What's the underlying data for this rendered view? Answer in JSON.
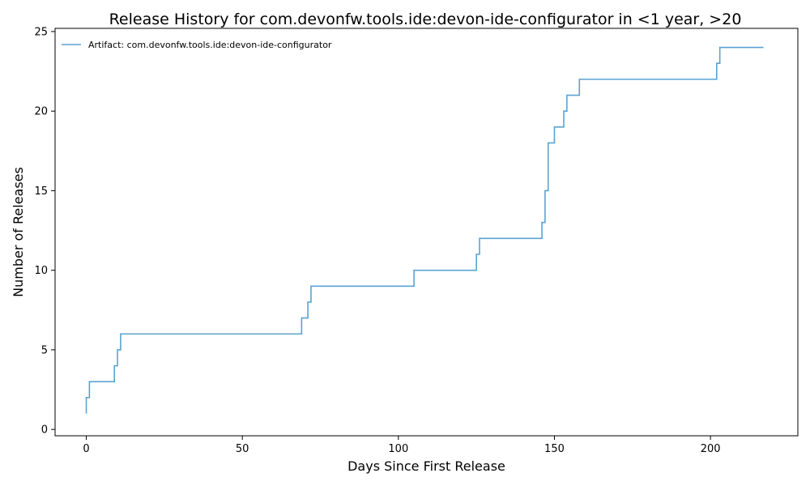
{
  "chart_data": {
    "type": "line",
    "step": true,
    "title": "Release History for com.devonfw.tools.ide:devon-ide-configurator in <1 year, >20",
    "xlabel": "Days Since First Release",
    "ylabel": "Number of Releases",
    "xlim": [
      -10,
      228
    ],
    "ylim": [
      -0.4,
      25.2
    ],
    "x_ticks": [
      0,
      50,
      100,
      150,
      200
    ],
    "y_ticks": [
      0,
      5,
      10,
      15,
      20,
      25
    ],
    "grid": false,
    "legend_position": "top-left",
    "series": [
      {
        "name": "Artifact: com.devonfw.tools.ide:devon-ide-configurator",
        "color": "#5ba3d0",
        "x": [
          0,
          0,
          1,
          9,
          10,
          11,
          69,
          71,
          72,
          105,
          125,
          126,
          146,
          147,
          148,
          150,
          153,
          154,
          158,
          202,
          203,
          217
        ],
        "y": [
          1,
          2,
          3,
          4,
          5,
          6,
          7,
          8,
          9,
          10,
          11,
          12,
          13,
          15,
          18,
          19,
          20,
          21,
          22,
          23,
          24,
          24
        ]
      }
    ]
  }
}
